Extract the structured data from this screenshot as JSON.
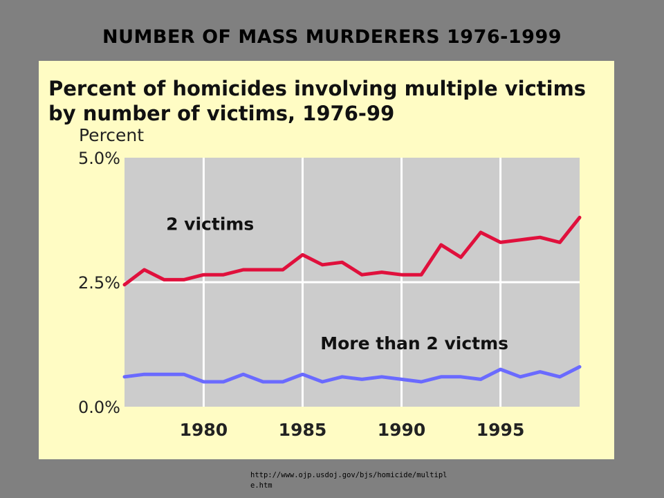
{
  "slide": {
    "title": "NUMBER OF  MASS MURDERERS 1976-1999",
    "source_url": "http://www.ojp.usdoj.gov/bjs/homicide/multiple.htm"
  },
  "chart_data": {
    "type": "line",
    "title": "Percent of homicides involving multiple victims by number of victims, 1976-99",
    "ylabel": "Percent",
    "xlabel": "",
    "x": [
      1976,
      1977,
      1978,
      1979,
      1980,
      1981,
      1982,
      1983,
      1984,
      1985,
      1986,
      1987,
      1988,
      1989,
      1990,
      1991,
      1992,
      1993,
      1994,
      1995,
      1996,
      1997,
      1998,
      1999
    ],
    "xlim": [
      1976,
      1999
    ],
    "ylim": [
      0,
      5.0
    ],
    "xticks": [
      1980,
      1985,
      1990,
      1995
    ],
    "xtick_labels": [
      "1980",
      "1985",
      "1990",
      "1995"
    ],
    "yticks": [
      0,
      2.5,
      5.0
    ],
    "ytick_labels": [
      "0.0%",
      "2.5%",
      "5.0%"
    ],
    "grid": true,
    "series": [
      {
        "name": "2 victims",
        "color": "#e0103c",
        "values": [
          2.45,
          2.75,
          2.55,
          2.55,
          2.65,
          2.65,
          2.75,
          2.75,
          2.75,
          3.05,
          2.85,
          2.9,
          2.65,
          2.7,
          2.65,
          2.65,
          3.25,
          3.0,
          3.5,
          3.3,
          3.35,
          3.4,
          3.3,
          3.8
        ]
      },
      {
        "name": "More than 2 victms",
        "color": "#6a6aff",
        "values": [
          0.6,
          0.65,
          0.65,
          0.65,
          0.5,
          0.5,
          0.65,
          0.5,
          0.5,
          0.65,
          0.5,
          0.6,
          0.55,
          0.6,
          0.55,
          0.5,
          0.6,
          0.6,
          0.55,
          0.75,
          0.6,
          0.7,
          0.6,
          0.8
        ]
      }
    ]
  }
}
